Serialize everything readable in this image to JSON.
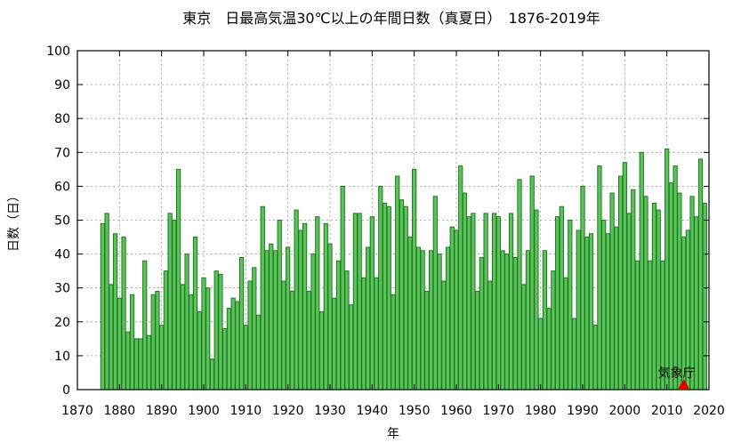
{
  "chart_data": {
    "type": "bar",
    "title": "東京　日最高気温30℃以上の年間日数（真夏日）　1876-2019年",
    "xlabel": "年",
    "ylabel": "日数（日）",
    "xlim": [
      1870,
      2020
    ],
    "ylim": [
      0,
      100
    ],
    "xticks": [
      1870,
      1880,
      1890,
      1900,
      1910,
      1920,
      1930,
      1940,
      1950,
      1960,
      1970,
      1980,
      1990,
      2000,
      2010,
      2020
    ],
    "yticks": [
      0,
      10,
      20,
      30,
      40,
      50,
      60,
      70,
      80,
      90,
      100
    ],
    "grid": true,
    "bar_color": "#5cc35c",
    "bar_edge_color": "#1f7a1f",
    "marker": {
      "label": "気象庁",
      "year": 2014,
      "value": 0,
      "color": "#e00000"
    },
    "start_year": 1876,
    "values": [
      49,
      52,
      31,
      46,
      27,
      45,
      17,
      28,
      15,
      15,
      38,
      16,
      28,
      29,
      19,
      35,
      52,
      50,
      65,
      31,
      40,
      28,
      45,
      23,
      33,
      30,
      9,
      35,
      34,
      18,
      24,
      27,
      26,
      39,
      19,
      32,
      36,
      22,
      54,
      41,
      43,
      41,
      50,
      32,
      42,
      29,
      53,
      47,
      49,
      29,
      40,
      51,
      23,
      49,
      43,
      27,
      38,
      60,
      35,
      25,
      52,
      52,
      33,
      42,
      51,
      33,
      60,
      55,
      54,
      28,
      63,
      56,
      54,
      45,
      65,
      42,
      41,
      29,
      41,
      57,
      40,
      32,
      42,
      48,
      47,
      66,
      58,
      51,
      52,
      29,
      39,
      52,
      32,
      52,
      51,
      41,
      40,
      52,
      39,
      62,
      31,
      41,
      63,
      53,
      21,
      41,
      24,
      35,
      51,
      54,
      33,
      50,
      21,
      47,
      60,
      45,
      46,
      19,
      66,
      50,
      46,
      58,
      48,
      63,
      67,
      52,
      59,
      38,
      70,
      57,
      38,
      55,
      53,
      38,
      71,
      61,
      66,
      58,
      45,
      47,
      57,
      51,
      68,
      55
    ]
  }
}
